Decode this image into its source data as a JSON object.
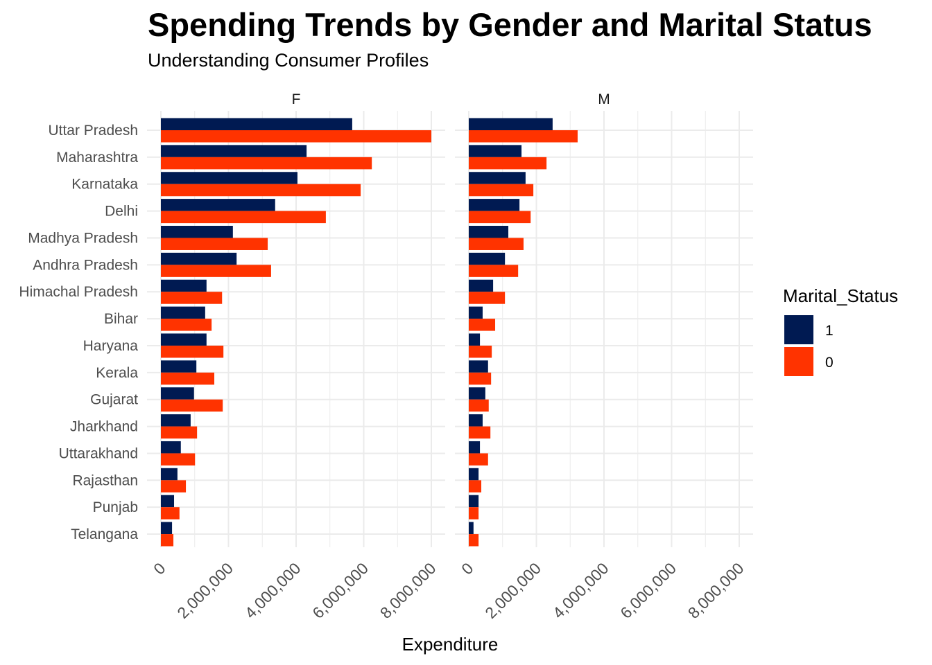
{
  "header": {
    "title": "Spending Trends by Gender and Marital Status",
    "subtitle": "Understanding Consumer Profiles"
  },
  "legend": {
    "title": "Marital_Status",
    "items": [
      {
        "label": "1",
        "color": "#001A52"
      },
      {
        "label": "0",
        "color": "#FF3300"
      }
    ]
  },
  "chart_data": {
    "type": "bar",
    "orientation": "horizontal",
    "title": "Spending Trends by Gender and Marital Status",
    "subtitle": "Understanding Consumer Profiles",
    "xlabel": "Expenditure",
    "ylabel": "",
    "xlim": [
      0,
      8400000
    ],
    "x_ticks": [
      0,
      2000000,
      4000000,
      6000000,
      8000000
    ],
    "x_tick_labels": [
      "0",
      "2,000,000",
      "4,000,000",
      "6,000,000",
      "8,000,000"
    ],
    "grid": true,
    "legend_position": "right",
    "legend_title": "Marital_Status",
    "facets": [
      "F",
      "M"
    ],
    "categories": [
      "Uttar Pradesh",
      "Maharashtra",
      "Karnataka",
      "Delhi",
      "Madhya Pradesh",
      "Andhra Pradesh",
      "Himachal Pradesh",
      "Bihar",
      "Haryana",
      "Kerala",
      "Gujarat",
      "Jharkhand",
      "Uttarakhand",
      "Rajasthan",
      "Punjab",
      "Telangana"
    ],
    "series": [
      {
        "facet": "F",
        "name": "1",
        "color": "#001A52",
        "values": [
          5660000,
          4310000,
          4040000,
          3380000,
          2130000,
          2240000,
          1350000,
          1310000,
          1350000,
          1050000,
          980000,
          880000,
          590000,
          490000,
          390000,
          330000
        ]
      },
      {
        "facet": "F",
        "name": "0",
        "color": "#FF3300",
        "values": [
          8000000,
          6240000,
          5910000,
          4880000,
          3160000,
          3260000,
          1810000,
          1500000,
          1850000,
          1580000,
          1830000,
          1070000,
          1010000,
          740000,
          550000,
          370000
        ]
      },
      {
        "facet": "M",
        "name": "1",
        "color": "#001A52",
        "values": [
          2480000,
          1560000,
          1680000,
          1500000,
          1170000,
          1070000,
          720000,
          410000,
          330000,
          570000,
          490000,
          410000,
          330000,
          290000,
          290000,
          140000
        ]
      },
      {
        "facet": "M",
        "name": "0",
        "color": "#FF3300",
        "values": [
          3220000,
          2300000,
          1910000,
          1830000,
          1620000,
          1460000,
          1070000,
          780000,
          680000,
          660000,
          590000,
          640000,
          570000,
          370000,
          290000,
          290000
        ]
      }
    ]
  }
}
